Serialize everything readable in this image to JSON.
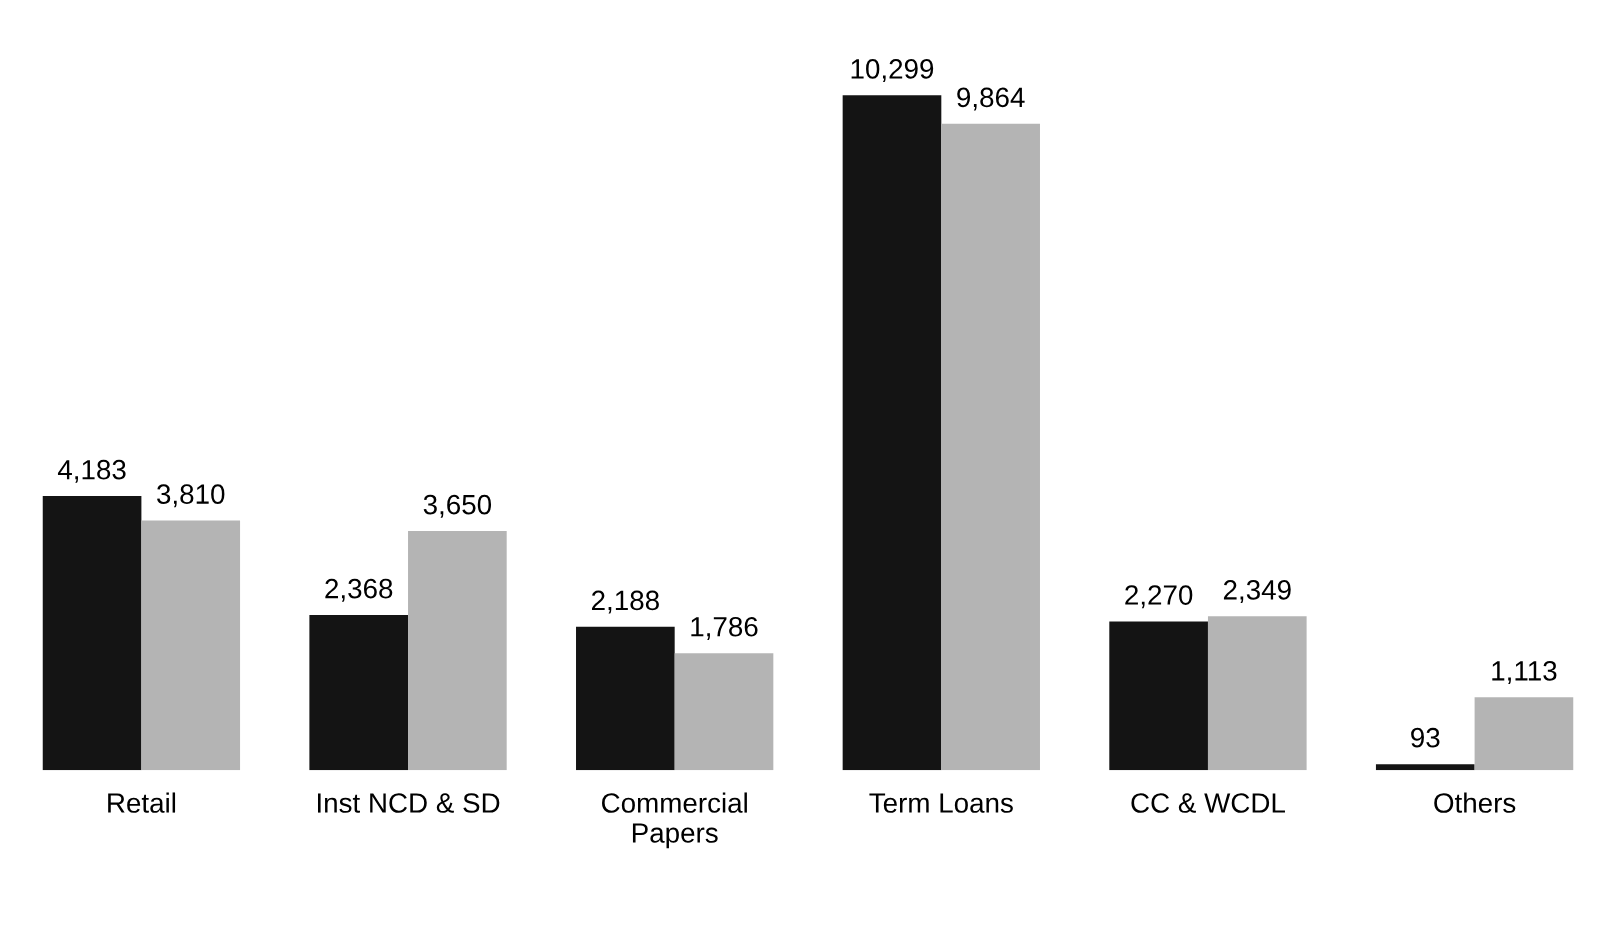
{
  "chart_data": {
    "type": "bar",
    "categories": [
      "Retail",
      "Inst NCD & SD",
      "Commercial\nPapers",
      "Term Loans",
      "CC & WCDL",
      "Others"
    ],
    "series": [
      {
        "color": "#141414",
        "values": [
          4183,
          2368,
          2188,
          10299,
          2270,
          93
        ],
        "value_labels": [
          "4,183",
          "2,368",
          "2,188",
          "10,299",
          "2,270",
          "93"
        ]
      },
      {
        "color": "#b4b4b4",
        "values": [
          3810,
          3650,
          1786,
          9864,
          2349,
          1113
        ],
        "value_labels": [
          "3,810",
          "3,650",
          "1,786",
          "9,864",
          "2,349",
          "1,113"
        ]
      }
    ]
  }
}
